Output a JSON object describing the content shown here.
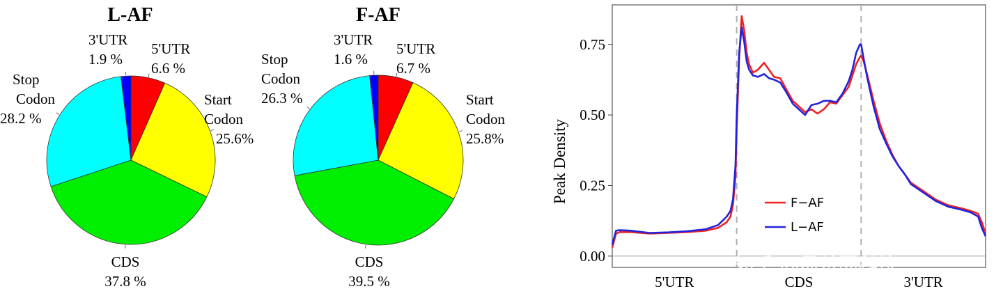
{
  "watermark": "知乎 @易基因科技",
  "colors": {
    "five_utr": "#ff0000",
    "start_codon": "#ffff00",
    "cds": "#00ee00",
    "stop_codon": "#00ffff",
    "three_utr": "#0000ff",
    "f_af": "#ee2222",
    "l_af": "#2222dd",
    "dashed": "#b0b0b0"
  },
  "chart_data": [
    {
      "type": "pie",
      "title": "L-AF",
      "slices": [
        {
          "key": "five_utr",
          "name": [
            "5'UTR"
          ],
          "value": 6.6,
          "label": "6.6 %"
        },
        {
          "key": "start_codon",
          "name": [
            "Start",
            "Codon"
          ],
          "value": 25.6,
          "label": "25.6%"
        },
        {
          "key": "cds",
          "name": [
            "CDS"
          ],
          "value": 37.8,
          "label": "37.8 %"
        },
        {
          "key": "stop_codon",
          "name": [
            "Stop",
            "Codon"
          ],
          "value": 28.2,
          "label": "28.2 %"
        },
        {
          "key": "three_utr",
          "name": [
            "3'UTR"
          ],
          "value": 1.9,
          "label": "1.9 %"
        }
      ]
    },
    {
      "type": "pie",
      "title": "F-AF",
      "slices": [
        {
          "key": "five_utr",
          "name": [
            "5'UTR"
          ],
          "value": 6.7,
          "label": "6.7 %"
        },
        {
          "key": "start_codon",
          "name": [
            "Start",
            "Codon"
          ],
          "value": 25.8,
          "label": "25.8%"
        },
        {
          "key": "cds",
          "name": [
            "CDS"
          ],
          "value": 39.5,
          "label": "39.5 %"
        },
        {
          "key": "stop_codon",
          "name": [
            "Stop",
            "Codon"
          ],
          "value": 26.3,
          "label": "26.3 %"
        },
        {
          "key": "three_utr",
          "name": [
            "3'UTR"
          ],
          "value": 1.6,
          "label": "1.6 %"
        }
      ]
    },
    {
      "type": "line",
      "ylabel": "Peak Density",
      "xlim": [
        0,
        3
      ],
      "ylim": [
        -0.04,
        0.89
      ],
      "yticks": [
        "0.00",
        "0.25",
        "0.50",
        "0.75"
      ],
      "ytick_values": [
        0,
        0.25,
        0.5,
        0.75
      ],
      "regions": [
        "5'UTR",
        "CDS",
        "3'UTR"
      ],
      "boundaries": [
        1,
        2
      ],
      "legend_position": "inside-bottom-center",
      "series": [
        {
          "name": "F−AF",
          "color_key": "f_af",
          "x": [
            0,
            0.03,
            0.06,
            0.15,
            0.3,
            0.45,
            0.6,
            0.75,
            0.85,
            0.92,
            0.95,
            0.97,
            0.99,
            1.0,
            1.02,
            1.04,
            1.06,
            1.08,
            1.1,
            1.13,
            1.17,
            1.22,
            1.26,
            1.3,
            1.35,
            1.4,
            1.45,
            1.5,
            1.55,
            1.6,
            1.65,
            1.7,
            1.75,
            1.8,
            1.85,
            1.9,
            1.93,
            1.96,
            1.99,
            2.0,
            2.02,
            2.05,
            2.1,
            2.15,
            2.2,
            2.25,
            2.3,
            2.35,
            2.4,
            2.5,
            2.6,
            2.7,
            2.8,
            2.88,
            2.94,
            2.97,
            3.0
          ],
          "y": [
            0.03,
            0.08,
            0.085,
            0.085,
            0.08,
            0.082,
            0.085,
            0.09,
            0.1,
            0.12,
            0.14,
            0.18,
            0.28,
            0.45,
            0.7,
            0.85,
            0.8,
            0.72,
            0.68,
            0.65,
            0.66,
            0.685,
            0.66,
            0.635,
            0.63,
            0.59,
            0.55,
            0.53,
            0.51,
            0.52,
            0.505,
            0.52,
            0.545,
            0.54,
            0.57,
            0.6,
            0.64,
            0.68,
            0.705,
            0.71,
            0.69,
            0.64,
            0.55,
            0.47,
            0.41,
            0.36,
            0.32,
            0.29,
            0.26,
            0.23,
            0.2,
            0.18,
            0.17,
            0.16,
            0.15,
            0.12,
            0.08
          ]
        },
        {
          "name": "L−AF",
          "color_key": "l_af",
          "x": [
            0,
            0.03,
            0.06,
            0.15,
            0.3,
            0.45,
            0.6,
            0.75,
            0.85,
            0.92,
            0.95,
            0.97,
            0.99,
            1.0,
            1.02,
            1.04,
            1.06,
            1.08,
            1.1,
            1.13,
            1.17,
            1.22,
            1.26,
            1.3,
            1.35,
            1.4,
            1.45,
            1.5,
            1.55,
            1.6,
            1.65,
            1.7,
            1.75,
            1.8,
            1.85,
            1.9,
            1.93,
            1.96,
            1.99,
            2.0,
            2.02,
            2.05,
            2.1,
            2.15,
            2.2,
            2.25,
            2.3,
            2.35,
            2.4,
            2.5,
            2.6,
            2.7,
            2.8,
            2.88,
            2.94,
            2.97,
            3.0
          ],
          "y": [
            0.04,
            0.09,
            0.092,
            0.09,
            0.082,
            0.084,
            0.088,
            0.095,
            0.11,
            0.14,
            0.16,
            0.2,
            0.32,
            0.5,
            0.72,
            0.81,
            0.76,
            0.69,
            0.66,
            0.64,
            0.635,
            0.645,
            0.63,
            0.625,
            0.615,
            0.58,
            0.54,
            0.52,
            0.5,
            0.535,
            0.54,
            0.55,
            0.55,
            0.545,
            0.575,
            0.62,
            0.66,
            0.72,
            0.75,
            0.75,
            0.7,
            0.63,
            0.53,
            0.45,
            0.4,
            0.355,
            0.32,
            0.29,
            0.255,
            0.225,
            0.195,
            0.175,
            0.165,
            0.155,
            0.14,
            0.1,
            0.07
          ]
        }
      ]
    }
  ]
}
